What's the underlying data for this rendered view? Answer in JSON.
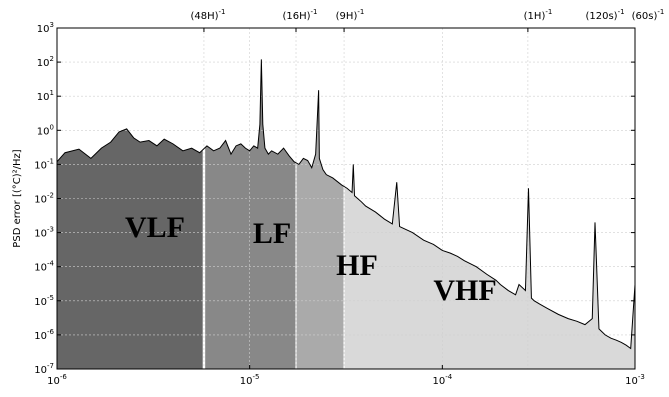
{
  "chart_data": {
    "type": "area",
    "x_scale": "log",
    "y_scale": "log",
    "xlim": [
      1e-06,
      0.001
    ],
    "ylim": [
      1e-07,
      1000
    ],
    "ylabel": "PSD error [(°C)²/Hz]",
    "xlabel": "",
    "grid": true,
    "x_ticks": [
      {
        "base": "10",
        "exp": "-6",
        "value": 1e-06
      },
      {
        "base": "10",
        "exp": "-5",
        "value": 1e-05
      },
      {
        "base": "10",
        "exp": "-4",
        "value": 0.0001
      },
      {
        "base": "10",
        "exp": "-3",
        "value": 0.001
      }
    ],
    "y_ticks": [
      {
        "base": "10",
        "exp": "3",
        "value": 1000
      },
      {
        "base": "10",
        "exp": "2",
        "value": 100
      },
      {
        "base": "10",
        "exp": "1",
        "value": 10
      },
      {
        "base": "10",
        "exp": "0",
        "value": 1
      },
      {
        "base": "10",
        "exp": "-1",
        "value": 0.1
      },
      {
        "base": "10",
        "exp": "-2",
        "value": 0.01
      },
      {
        "base": "10",
        "exp": "-3",
        "value": 0.001
      },
      {
        "base": "10",
        "exp": "-4",
        "value": 0.0001
      },
      {
        "base": "10",
        "exp": "-5",
        "value": 1e-05
      },
      {
        "base": "10",
        "exp": "-6",
        "value": 1e-06
      },
      {
        "base": "10",
        "exp": "-7",
        "value": 1e-07
      }
    ],
    "top_ticks": [
      {
        "base": "(48H)",
        "exp": "-1",
        "value": 5.79e-06
      },
      {
        "base": "(16H)",
        "exp": "-1",
        "value": 1.74e-05
      },
      {
        "base": "(9H)",
        "exp": "-1",
        "value": 3.09e-05
      },
      {
        "base": "(1H)",
        "exp": "-1",
        "value": 0.000278
      },
      {
        "base": "(120s)",
        "exp": "-1",
        "value": 0.00833
      },
      {
        "base": "(60s)",
        "exp": "-1",
        "value": 0.0167
      }
    ],
    "bands": [
      {
        "label": "VLF",
        "from": 1e-06,
        "to": 5.79e-06,
        "color": "#666666"
      },
      {
        "label": "LF",
        "from": 5.79e-06,
        "to": 1.74e-05,
        "color": "#888888"
      },
      {
        "label": "HF",
        "from": 1.74e-05,
        "to": 3.09e-05,
        "color": "#aaaaaa"
      },
      {
        "label": "VHF",
        "from": 3.09e-05,
        "to": 0.001,
        "color": "#d9d9d9"
      }
    ],
    "series": [
      {
        "color": "#000000",
        "x": [
          1e-06,
          1.1e-06,
          1.3e-06,
          1.5e-06,
          1.7e-06,
          1.9e-06,
          2.1e-06,
          2.3e-06,
          2.5e-06,
          2.7e-06,
          3e-06,
          3.3e-06,
          3.6e-06,
          4e-06,
          4.5e-06,
          5e-06,
          5.5e-06,
          6e-06,
          6.5e-06,
          7e-06,
          7.5e-06,
          8e-06,
          8.5e-06,
          9e-06,
          9.5e-06,
          1e-05,
          1.05e-05,
          1.1e-05,
          1.13e-05,
          1.15e-05,
          1.17e-05,
          1.2e-05,
          1.25e-05,
          1.3e-05,
          1.4e-05,
          1.5e-05,
          1.6e-05,
          1.7e-05,
          1.8e-05,
          1.9e-05,
          2e-05,
          2.1e-05,
          2.2e-05,
          2.25e-05,
          2.28e-05,
          2.3e-05,
          2.4e-05,
          2.5e-05,
          2.7e-05,
          3e-05,
          3.2e-05,
          3.4e-05,
          3.45e-05,
          3.5e-05,
          3.8e-05,
          4e-05,
          4.5e-05,
          5e-05,
          5.5e-05,
          5.8e-05,
          6e-05,
          7e-05,
          8e-05,
          9e-05,
          0.0001,
          0.00011,
          0.00012,
          0.00013,
          0.00015,
          0.00017,
          0.00019,
          0.0002,
          0.00022,
          0.00024,
          0.00025,
          0.00027,
          0.00028,
          0.00029,
          0.0003,
          0.00032,
          0.00035,
          0.0004,
          0.00045,
          0.0005,
          0.00055,
          0.0006,
          0.00062,
          0.00065,
          0.0007,
          0.00075,
          0.0008,
          0.00085,
          0.0009,
          0.00095,
          0.001
        ],
        "y": [
          0.12,
          0.22,
          0.28,
          0.15,
          0.3,
          0.45,
          0.9,
          1.1,
          0.6,
          0.45,
          0.5,
          0.35,
          0.55,
          0.4,
          0.25,
          0.3,
          0.22,
          0.35,
          0.25,
          0.3,
          0.5,
          0.2,
          0.35,
          0.4,
          0.3,
          0.25,
          0.35,
          0.3,
          1.5,
          120,
          1.5,
          0.3,
          0.2,
          0.25,
          0.2,
          0.3,
          0.18,
          0.12,
          0.1,
          0.15,
          0.13,
          0.08,
          0.2,
          3,
          15,
          0.15,
          0.07,
          0.05,
          0.04,
          0.025,
          0.02,
          0.015,
          0.1,
          0.012,
          0.008,
          0.006,
          0.004,
          0.0025,
          0.0018,
          0.03,
          0.0015,
          0.001,
          0.0006,
          0.00045,
          0.0003,
          0.00025,
          0.0002,
          0.00015,
          0.0001,
          6e-05,
          4e-05,
          3e-05,
          2e-05,
          1.5e-05,
          3e-05,
          2e-05,
          0.02,
          1.2e-05,
          1e-05,
          8e-06,
          6e-06,
          4e-06,
          3e-06,
          2.5e-06,
          2e-06,
          3e-06,
          0.002,
          1.5e-06,
          1e-06,
          8e-07,
          7e-07,
          6e-07,
          5e-07,
          4e-07,
          3e-05
        ]
      }
    ]
  }
}
